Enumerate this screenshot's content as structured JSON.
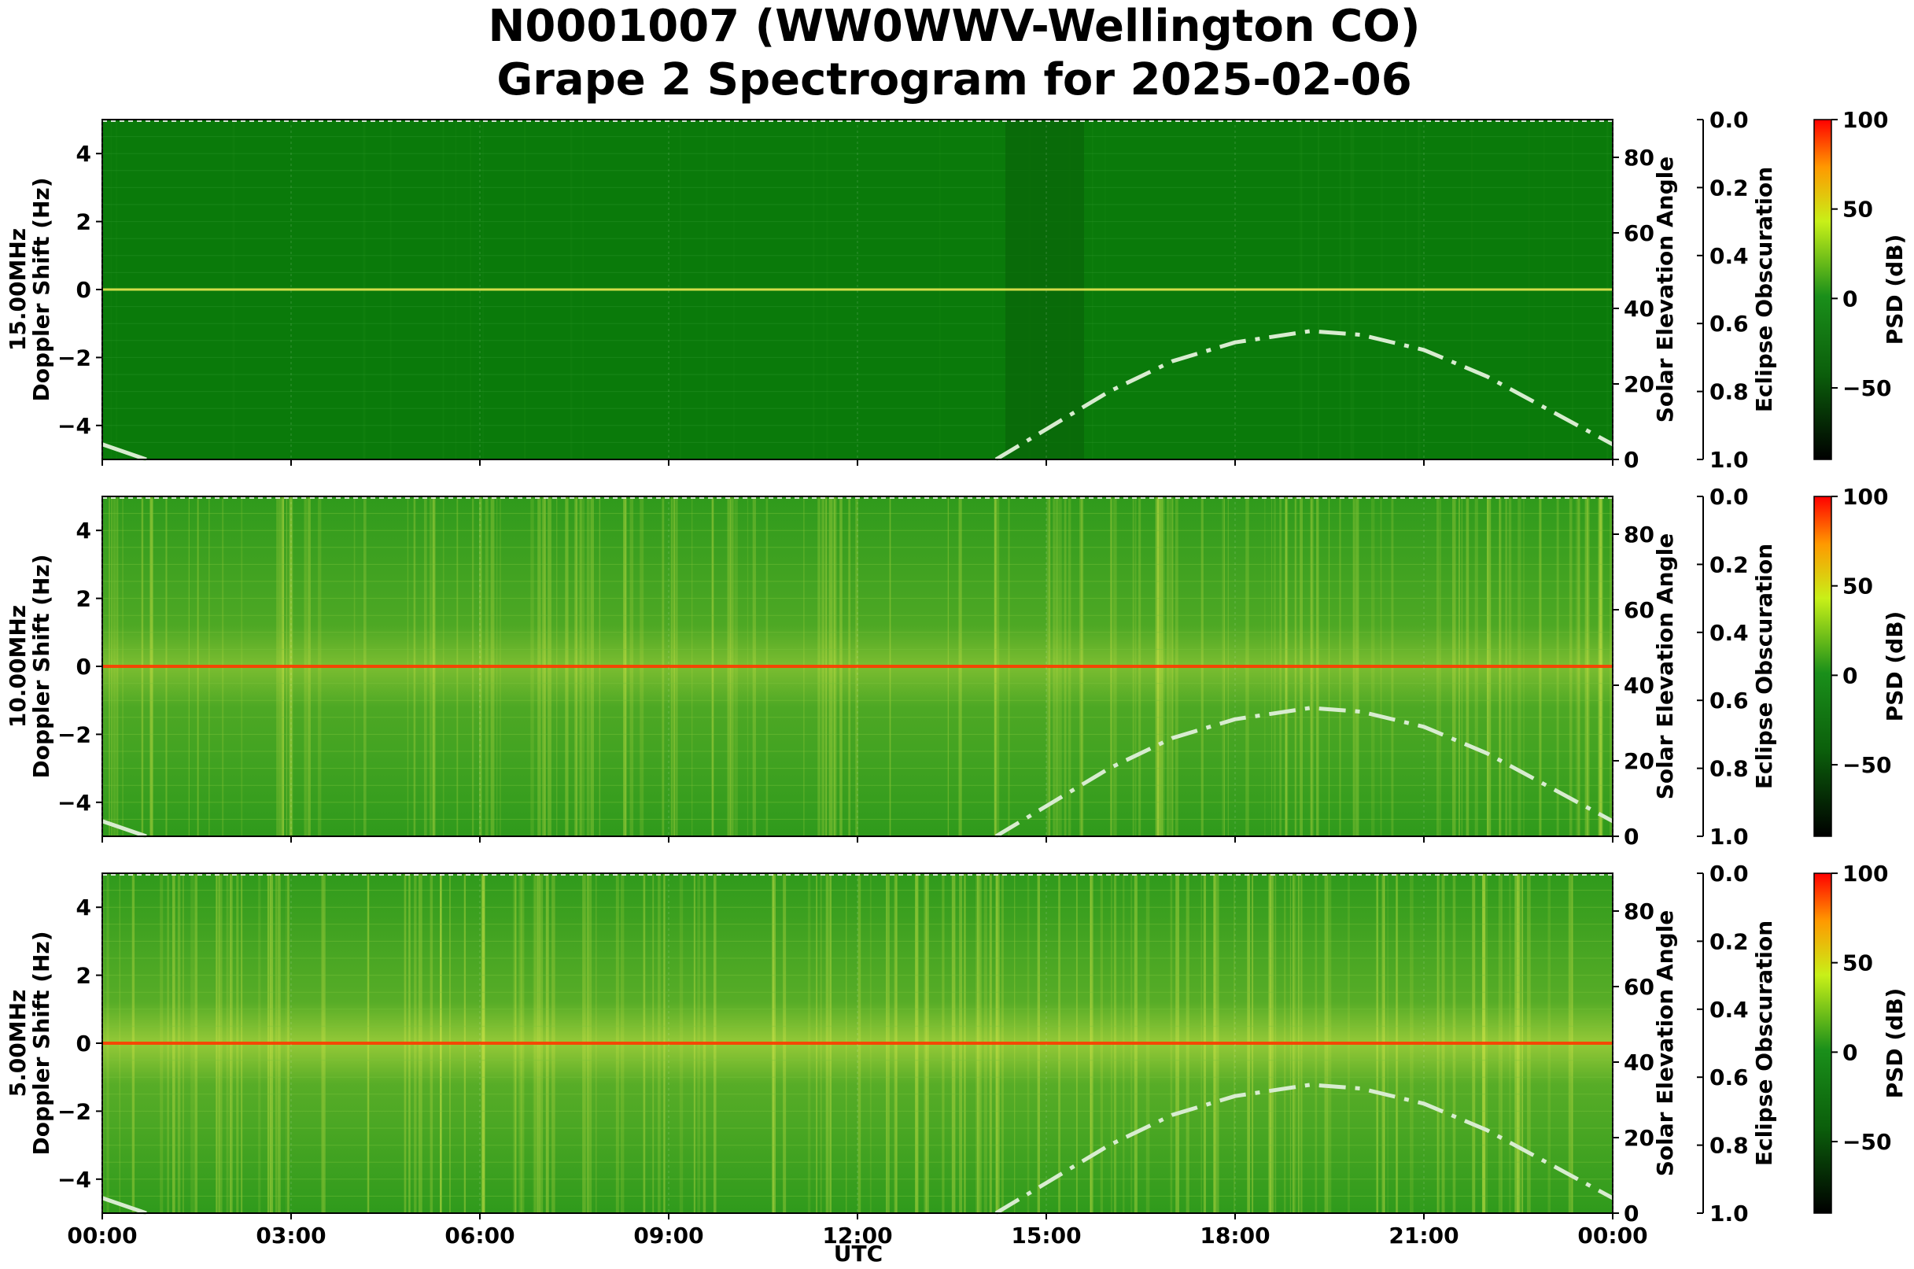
{
  "title_line1": "N0001007 (WW0WWV-Wellington CO)",
  "title_line2": "Grape 2 Spectrogram for 2025-02-06",
  "xlabel": "UTC",
  "x_ticks": [
    "00:00",
    "03:00",
    "06:00",
    "09:00",
    "12:00",
    "15:00",
    "18:00",
    "21:00",
    "00:00"
  ],
  "y_ticks": [
    -4,
    -2,
    0,
    2,
    4
  ],
  "elev_ticks": [
    0,
    20,
    40,
    60,
    80
  ],
  "obsc_ticks": [
    "0.0",
    "0.2",
    "0.4",
    "0.6",
    "0.8",
    "1.0"
  ],
  "cbar_ticks": [
    100,
    50,
    0,
    -50
  ],
  "colors": {
    "background_green": "#0a7d0a",
    "band_yellow": "#d8e84a",
    "carrier_red": "#ff3b00",
    "elevation_curve": "#d8ecd0",
    "colormap": [
      "#000000",
      "#0b5e0b",
      "#1a8f1a",
      "#c8f018",
      "#ff9900",
      "#ff0000"
    ]
  },
  "chart_data": [
    {
      "type": "heatmap",
      "frequency_label": "15.00MHz",
      "ylabel": "Doppler Shift (Hz)",
      "ylim": [
        -5,
        5
      ],
      "xlim": [
        "2025-02-06 00:00",
        "2025-02-07 00:00"
      ],
      "right_axis_1": {
        "label": "Solar Elevation Angle",
        "range": [
          0,
          90
        ]
      },
      "right_axis_2": {
        "label": "Eclipse Obscuration",
        "range": [
          0.0,
          1.0
        ],
        "inverted": true
      },
      "colorbar": {
        "label": "PSD (dB)",
        "range": [
          -90,
          100
        ]
      },
      "carrier_doppler_hz": 0,
      "solar_elevation": {
        "x_hours": [
          0.0,
          14.2,
          15.0,
          16.0,
          17.0,
          18.0,
          19.0,
          19.2,
          20.0,
          21.0,
          22.0,
          23.0,
          24.0
        ],
        "y_deg": [
          4,
          0,
          8,
          18,
          26,
          31,
          33.5,
          34,
          33,
          29,
          22,
          13,
          4
        ]
      },
      "notes": "data gap / low power between ~14:20 and ~15:40 UTC"
    },
    {
      "type": "heatmap",
      "frequency_label": "10.00MHz",
      "ylabel": "Doppler Shift (Hz)",
      "ylim": [
        -5,
        5
      ],
      "xlim": [
        "2025-02-06 00:00",
        "2025-02-07 00:00"
      ],
      "right_axis_1": {
        "label": "Solar Elevation Angle",
        "range": [
          0,
          90
        ]
      },
      "right_axis_2": {
        "label": "Eclipse Obscuration",
        "range": [
          0.0,
          1.0
        ],
        "inverted": true
      },
      "colorbar": {
        "label": "PSD (dB)",
        "range": [
          -90,
          100
        ]
      },
      "carrier_doppler_hz": 0,
      "solar_elevation": {
        "x_hours": [
          0.0,
          14.2,
          15.0,
          16.0,
          17.0,
          18.0,
          19.0,
          19.2,
          20.0,
          21.0,
          22.0,
          23.0,
          24.0
        ],
        "y_deg": [
          4,
          0,
          8,
          18,
          26,
          31,
          33.5,
          34,
          33,
          29,
          22,
          13,
          4
        ]
      }
    },
    {
      "type": "heatmap",
      "frequency_label": "5.00MHz",
      "ylabel": "Doppler Shift (Hz)",
      "ylim": [
        -5,
        5
      ],
      "xlim": [
        "2025-02-06 00:00",
        "2025-02-07 00:00"
      ],
      "right_axis_1": {
        "label": "Solar Elevation Angle",
        "range": [
          0,
          90
        ]
      },
      "right_axis_2": {
        "label": "Eclipse Obscuration",
        "range": [
          0.0,
          1.0
        ],
        "inverted": true
      },
      "colorbar": {
        "label": "PSD (dB)",
        "range": [
          -90,
          100
        ]
      },
      "carrier_doppler_hz": 0,
      "solar_elevation": {
        "x_hours": [
          0.0,
          14.2,
          15.0,
          16.0,
          17.0,
          18.0,
          19.0,
          19.2,
          20.0,
          21.0,
          22.0,
          23.0,
          24.0
        ],
        "y_deg": [
          4,
          0,
          8,
          18,
          26,
          31,
          33.5,
          34,
          33,
          29,
          22,
          13,
          4
        ]
      }
    }
  ]
}
